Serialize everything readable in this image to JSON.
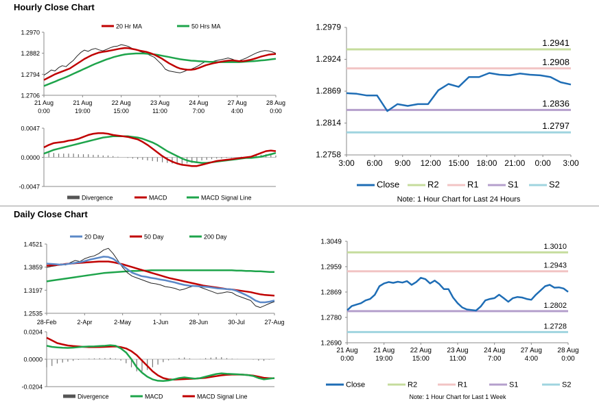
{
  "sections": {
    "hourly_title": "Hourly Close Chart",
    "daily_title": "Daily Close Chart"
  },
  "colors": {
    "close": "#1e6db5",
    "ma20": "#c00000",
    "ma50": "#1ea44b",
    "ma200": "#1ea44b",
    "day20": "#5b88c7",
    "macd_red": "#c00000",
    "macd_green": "#1ea44b",
    "r2": "#c5dc9c",
    "r1": "#f2c4c4",
    "s1": "#b49fcc",
    "s2": "#9fd4df",
    "bars": "#777777"
  },
  "chart_data": [
    {
      "id": "hourly_price",
      "type": "line",
      "legend": [
        "20 Hr MA",
        "50 Hrs MA"
      ],
      "yticks": [
        "1.2970",
        "1.2882",
        "1.2794",
        "1.2706"
      ],
      "ylim": [
        1.2706,
        1.297
      ],
      "xticks": [
        [
          "21 Aug",
          "0:00"
        ],
        [
          "21 Aug",
          "19:00"
        ],
        [
          "22 Aug",
          "15:00"
        ],
        [
          "23 Aug",
          "11:00"
        ],
        [
          "24 Aug",
          "7:00"
        ],
        [
          "27 Aug",
          "4:00"
        ],
        [
          "28 Aug",
          "0:00"
        ]
      ],
      "price": [
        1.279,
        1.28,
        1.2812,
        1.2808,
        1.2822,
        1.283,
        1.2826,
        1.284,
        1.2852,
        1.287,
        1.2885,
        1.2895,
        1.289,
        1.2898,
        1.2902,
        1.2896,
        1.2892,
        1.2898,
        1.2905,
        1.291,
        1.2912,
        1.2918,
        1.2915,
        1.291,
        1.2902,
        1.2898,
        1.289,
        1.2885,
        1.288,
        1.2872,
        1.2865,
        1.285,
        1.2835,
        1.2815,
        1.2808,
        1.2805,
        1.2802,
        1.28,
        1.2805,
        1.2812,
        1.2815,
        1.2822,
        1.283,
        1.284,
        1.2848,
        1.2845,
        1.2848,
        1.2852,
        1.2855,
        1.2858,
        1.2862,
        1.2858,
        1.2852,
        1.285,
        1.2856,
        1.2862,
        1.287,
        1.2878,
        1.2885,
        1.289,
        1.2893,
        1.2892,
        1.2888,
        1.2882
      ],
      "ma20": [
        1.277,
        1.2778,
        1.2786,
        1.2794,
        1.28,
        1.2806,
        1.2812,
        1.2818,
        1.2828,
        1.2838,
        1.2848,
        1.2858,
        1.2866,
        1.2874,
        1.288,
        1.2885,
        1.2888,
        1.289,
        1.2893,
        1.2896,
        1.2899,
        1.2902,
        1.2904,
        1.2903,
        1.29,
        1.2897,
        1.2893,
        1.289,
        1.2887,
        1.2882,
        1.2876,
        1.2868,
        1.286,
        1.285,
        1.284,
        1.2832,
        1.2824,
        1.2818,
        1.2815,
        1.2813,
        1.2813,
        1.2815,
        1.282,
        1.2826,
        1.2832,
        1.2836,
        1.284,
        1.2843,
        1.2846,
        1.2849,
        1.2851,
        1.2852,
        1.2851,
        1.2849,
        1.2849,
        1.2851,
        1.2854,
        1.2858,
        1.2863,
        1.2868,
        1.2872,
        1.2876,
        1.2878,
        1.2879
      ],
      "ma50": [
        1.2745,
        1.2751,
        1.2757,
        1.2763,
        1.277,
        1.2776,
        1.2782,
        1.2789,
        1.2796,
        1.2803,
        1.281,
        1.2817,
        1.2824,
        1.2831,
        1.2838,
        1.2844,
        1.285,
        1.2856,
        1.2861,
        1.2866,
        1.287,
        1.2874,
        1.2877,
        1.2879,
        1.288,
        1.2881,
        1.2881,
        1.2881,
        1.288,
        1.2879,
        1.2877,
        1.2875,
        1.2872,
        1.2869,
        1.2866,
        1.2863,
        1.286,
        1.2857,
        1.2855,
        1.2853,
        1.2851,
        1.285,
        1.2849,
        1.2848,
        1.2847,
        1.2846,
        1.2846,
        1.2845,
        1.2845,
        1.2845,
        1.2845,
        1.2845,
        1.2845,
        1.2845,
        1.2846,
        1.2847,
        1.2848,
        1.2849,
        1.285,
        1.2852,
        1.2853,
        1.2855,
        1.2857,
        1.2859
      ]
    },
    {
      "id": "hourly_macd",
      "type": "line",
      "legend": [
        "Divergence",
        "MACD",
        "MACD Signal Line"
      ],
      "yticks": [
        "0.0047",
        "0.0000",
        "-0.0047"
      ],
      "ylim": [
        -0.0047,
        0.0047
      ],
      "macd": [
        0.0016,
        0.002,
        0.0023,
        0.0024,
        0.0025,
        0.0027,
        0.0028,
        0.003,
        0.0033,
        0.0036,
        0.0038,
        0.0039,
        0.0039,
        0.0038,
        0.0036,
        0.0035,
        0.0034,
        0.0033,
        0.0031,
        0.0029,
        0.0025,
        0.002,
        0.0014,
        0.0008,
        0.0002,
        -0.0003,
        -0.0007,
        -0.001,
        -0.0012,
        -0.0013,
        -0.0014,
        -0.0014,
        -0.0012,
        -0.001,
        -0.0008,
        -0.0006,
        -0.0005,
        -0.0004,
        -0.0003,
        -0.0002,
        -0.0001,
        0.0,
        0.0001,
        0.0004,
        0.0007,
        0.001,
        0.0011,
        0.001
      ],
      "signal": [
        0.0006,
        0.0009,
        0.0012,
        0.0014,
        0.0016,
        0.0018,
        0.002,
        0.0022,
        0.0024,
        0.0026,
        0.0028,
        0.003,
        0.0032,
        0.0033,
        0.0034,
        0.0034,
        0.0034,
        0.0034,
        0.0033,
        0.0032,
        0.003,
        0.0027,
        0.0024,
        0.002,
        0.0015,
        0.001,
        0.0006,
        0.0002,
        -0.0002,
        -0.0005,
        -0.0007,
        -0.0008,
        -0.0009,
        -0.0009,
        -0.0008,
        -0.0007,
        -0.0006,
        -0.0005,
        -0.0004,
        -0.0003,
        -0.0002,
        -0.0001,
        -0.0001,
        0.0,
        0.0001,
        0.0003,
        0.0005,
        0.0007
      ],
      "divergence": [
        0.0007,
        0.0007,
        0.0007,
        0.0006,
        0.0006,
        0.0006,
        0.0006,
        0.0005,
        0.0005,
        0.0005,
        0.0004,
        0.0004,
        0.0003,
        0.0003,
        0.0002,
        0.0001,
        0.0,
        -0.0001,
        -0.0002,
        -0.0003,
        -0.0004,
        -0.0005,
        -0.0006,
        -0.0007,
        -0.0008,
        -0.0009,
        -0.001,
        -0.0011,
        -0.0011,
        -0.001,
        -0.0009,
        -0.0007,
        -0.0005,
        -0.0004,
        -0.0003,
        -0.0002,
        -0.0002,
        -0.0001,
        -0.0001,
        0.0,
        0.0001,
        0.0001,
        0.0002,
        0.0003,
        0.0004,
        0.0005,
        0.0004,
        0.0003
      ]
    },
    {
      "id": "hourly_levels",
      "type": "line",
      "legend": [
        "Close",
        "R2",
        "R1",
        "S1",
        "S2"
      ],
      "note": "Note: 1 Hour Chart for Last 24 Hours",
      "yticks": [
        "1.2979",
        "1.2924",
        "1.2869",
        "1.2814",
        "1.2758"
      ],
      "ylim": [
        1.2758,
        1.2979
      ],
      "xticks": [
        "3:00",
        "6:00",
        "9:00",
        "12:00",
        "15:00",
        "18:00",
        "21:00",
        "0:00",
        "3:00"
      ],
      "levels": [
        {
          "key": "R2",
          "value": 1.2941,
          "label": "1.2941"
        },
        {
          "key": "R1",
          "value": 1.2908,
          "label": "1.2908"
        },
        {
          "key": "S1",
          "value": 1.2836,
          "label": "1.2836"
        },
        {
          "key": "S2",
          "value": 1.2797,
          "label": "1.2797"
        }
      ],
      "close": [
        1.2865,
        1.2864,
        1.2861,
        1.2861,
        1.2834,
        1.2846,
        1.2843,
        1.2846,
        1.2846,
        1.287,
        1.2881,
        1.2876,
        1.2893,
        1.2893,
        1.29,
        1.2897,
        1.2896,
        1.2899,
        1.2897,
        1.2896,
        1.2893,
        1.2884,
        1.288
      ]
    },
    {
      "id": "daily_price",
      "type": "line",
      "legend": [
        "20 Day",
        "50 Day",
        "200 Day"
      ],
      "yticks": [
        "1.4521",
        "1.3859",
        "1.3197",
        "1.2535"
      ],
      "ylim": [
        1.2535,
        1.4521
      ],
      "xticks": [
        "28-Feb",
        "2-Apr",
        "2-May",
        "1-Jun",
        "28-Jun",
        "30-Jul",
        "27-Aug"
      ],
      "price": [
        1.385,
        1.388,
        1.39,
        1.395,
        1.392,
        1.399,
        1.405,
        1.402,
        1.41,
        1.415,
        1.418,
        1.425,
        1.435,
        1.44,
        1.425,
        1.405,
        1.385,
        1.37,
        1.36,
        1.355,
        1.35,
        1.345,
        1.34,
        1.338,
        1.335,
        1.33,
        1.328,
        1.325,
        1.32,
        1.323,
        1.328,
        1.332,
        1.33,
        1.325,
        1.32,
        1.315,
        1.31,
        1.312,
        1.315,
        1.313,
        1.305,
        1.3,
        1.295,
        1.29,
        1.275,
        1.27,
        1.276,
        1.282,
        1.287
      ],
      "day20": [
        1.396,
        1.395,
        1.394,
        1.393,
        1.394,
        1.396,
        1.398,
        1.4,
        1.403,
        1.407,
        1.41,
        1.413,
        1.416,
        1.415,
        1.41,
        1.4,
        1.39,
        1.38,
        1.37,
        1.365,
        1.36,
        1.358,
        1.355,
        1.353,
        1.35,
        1.348,
        1.345,
        1.342,
        1.338,
        1.335,
        1.333,
        1.332,
        1.331,
        1.33,
        1.329,
        1.327,
        1.325,
        1.324,
        1.323,
        1.322,
        1.318,
        1.312,
        1.306,
        1.299,
        1.29,
        1.285,
        1.285,
        1.287,
        1.29
      ],
      "day50": [
        1.39,
        1.391,
        1.392,
        1.393,
        1.395,
        1.396,
        1.397,
        1.398,
        1.399,
        1.4,
        1.401,
        1.402,
        1.402,
        1.402,
        1.4,
        1.397,
        1.394,
        1.39,
        1.386,
        1.382,
        1.378,
        1.374,
        1.37,
        1.366,
        1.362,
        1.358,
        1.354,
        1.351,
        1.348,
        1.345,
        1.342,
        1.339,
        1.336,
        1.333,
        1.331,
        1.329,
        1.327,
        1.325,
        1.323,
        1.322,
        1.32,
        1.318,
        1.316,
        1.314,
        1.311,
        1.308,
        1.306,
        1.305,
        1.304
      ],
      "day200": [
        1.345,
        1.347,
        1.349,
        1.351,
        1.353,
        1.355,
        1.357,
        1.359,
        1.361,
        1.363,
        1.365,
        1.367,
        1.369,
        1.37,
        1.371,
        1.372,
        1.373,
        1.374,
        1.375,
        1.375,
        1.376,
        1.376,
        1.377,
        1.377,
        1.377,
        1.377,
        1.377,
        1.377,
        1.377,
        1.377,
        1.377,
        1.377,
        1.377,
        1.377,
        1.377,
        1.377,
        1.377,
        1.377,
        1.377,
        1.377,
        1.376,
        1.376,
        1.375,
        1.375,
        1.374,
        1.374,
        1.373,
        1.372,
        1.372
      ]
    },
    {
      "id": "daily_macd",
      "type": "line",
      "legend": [
        "Divergence",
        "MACD",
        "MACD Signal Line"
      ],
      "yticks": [
        "0.0204",
        "0.0000",
        "-0.0204"
      ],
      "ylim": [
        -0.0204,
        0.0204
      ],
      "macd": [
        0.01,
        0.0092,
        0.0088,
        0.0085,
        0.0084,
        0.0086,
        0.009,
        0.0093,
        0.0095,
        0.0096,
        0.0098,
        0.01,
        0.0104,
        0.01,
        0.008,
        0.005,
        0.0,
        -0.006,
        -0.01,
        -0.013,
        -0.015,
        -0.016,
        -0.0162,
        -0.0158,
        -0.015,
        -0.014,
        -0.0135,
        -0.014,
        -0.0145,
        -0.014,
        -0.013,
        -0.012,
        -0.011,
        -0.0105,
        -0.0108,
        -0.011,
        -0.0112,
        -0.0115,
        -0.0118,
        -0.0125,
        -0.014,
        -0.015,
        -0.0145,
        -0.014
      ],
      "signal": [
        0.016,
        0.014,
        0.012,
        0.011,
        0.0102,
        0.0098,
        0.0095,
        0.0092,
        0.009,
        0.009,
        0.0091,
        0.0092,
        0.0094,
        0.0095,
        0.009,
        0.008,
        0.006,
        0.003,
        -0.001,
        -0.005,
        -0.009,
        -0.012,
        -0.014,
        -0.015,
        -0.0152,
        -0.015,
        -0.0148,
        -0.0146,
        -0.0145,
        -0.0142,
        -0.0138,
        -0.0132,
        -0.0126,
        -0.012,
        -0.0116,
        -0.0114,
        -0.0114,
        -0.0115,
        -0.0118,
        -0.0122,
        -0.013,
        -0.0138,
        -0.0142,
        -0.0142
      ],
      "divergence": [
        -0.006,
        -0.005,
        -0.0032,
        -0.0025,
        -0.0018,
        -0.0012,
        -0.0005,
        0.0001,
        0.0005,
        0.0006,
        0.0007,
        0.0008,
        0.001,
        0.0005,
        -0.001,
        -0.003,
        -0.006,
        -0.009,
        -0.009,
        -0.008,
        -0.006,
        -0.004,
        -0.0022,
        -0.0008,
        0.0002,
        0.001,
        0.0013,
        0.0006,
        0.0,
        0.0002,
        0.0008,
        0.0012,
        0.0016,
        0.0015,
        0.0008,
        0.0004,
        0.0002,
        0.0,
        0.0,
        -0.0003,
        -0.001,
        -0.0012,
        -0.0003,
        0.0002
      ]
    },
    {
      "id": "weekly_levels",
      "type": "line",
      "legend": [
        "Close",
        "R2",
        "R1",
        "S1",
        "S2"
      ],
      "note": "Note: 1 Hour Chart for Last 1 Week",
      "yticks": [
        "1.3049",
        "1.2959",
        "1.2869",
        "1.2780",
        "1.2690"
      ],
      "ylim": [
        1.269,
        1.3049
      ],
      "xticks": [
        [
          "21 Aug",
          "0:00"
        ],
        [
          "21 Aug",
          "19:00"
        ],
        [
          "22 Aug",
          "15:00"
        ],
        [
          "23 Aug",
          "11:00"
        ],
        [
          "24 Aug",
          "7:00"
        ],
        [
          "27 Aug",
          "4:00"
        ],
        [
          "28 Aug",
          "0:00"
        ]
      ],
      "levels": [
        {
          "key": "R2",
          "value": 1.301,
          "label": "1.3010"
        },
        {
          "key": "R1",
          "value": 1.2943,
          "label": "1.2943"
        },
        {
          "key": "S1",
          "value": 1.2802,
          "label": "1.2802"
        },
        {
          "key": "S2",
          "value": 1.2728,
          "label": "1.2728"
        }
      ],
      "close": [
        1.2805,
        1.282,
        1.2825,
        1.283,
        1.284,
        1.2845,
        1.286,
        1.289,
        1.29,
        1.2905,
        1.2902,
        1.2906,
        1.2903,
        1.2908,
        1.2895,
        1.2905,
        1.292,
        1.2915,
        1.29,
        1.291,
        1.2898,
        1.288,
        1.288,
        1.285,
        1.283,
        1.2815,
        1.2808,
        1.2806,
        1.2804,
        1.2818,
        1.284,
        1.2845,
        1.2848,
        1.286,
        1.2848,
        1.2835,
        1.2848,
        1.2852,
        1.285,
        1.2845,
        1.2842,
        1.286,
        1.2875,
        1.289,
        1.2895,
        1.2885,
        1.2886,
        1.2882,
        1.287
      ]
    }
  ]
}
